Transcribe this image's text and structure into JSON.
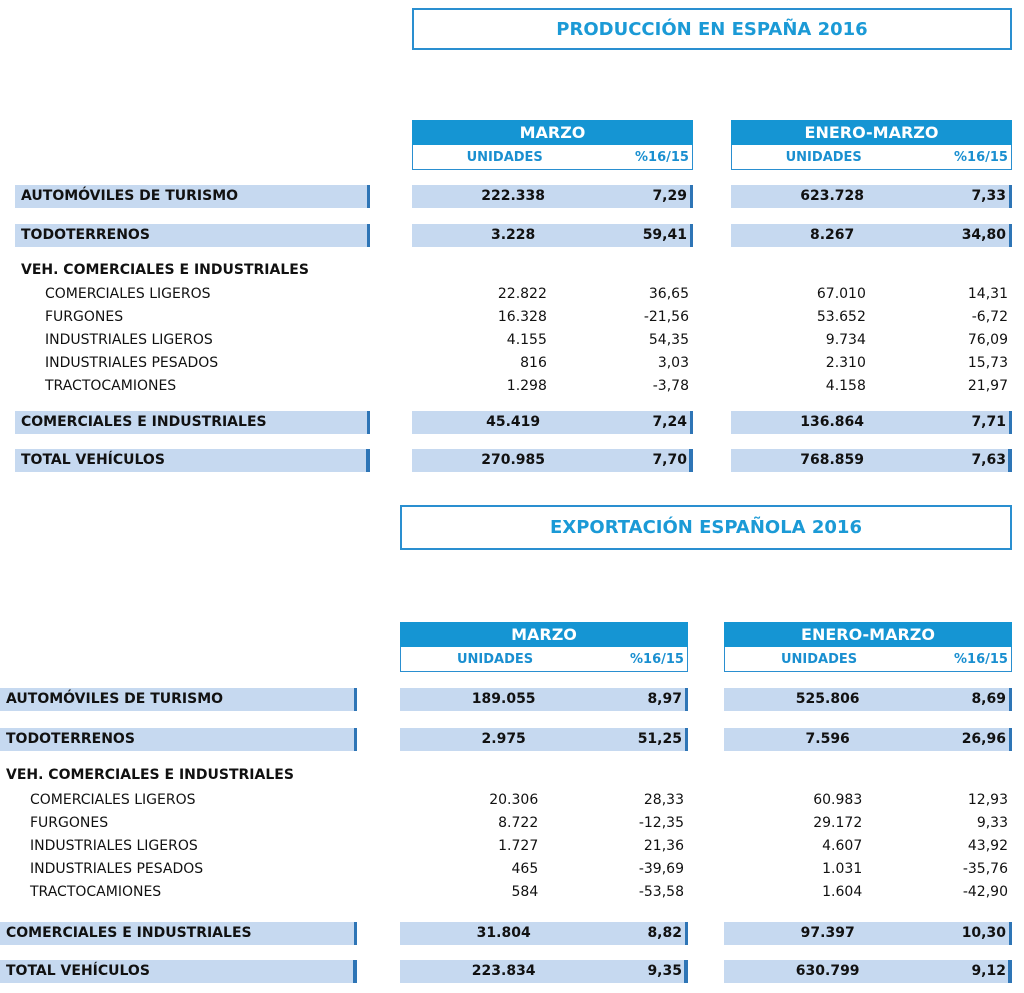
{
  "sections": [
    {
      "title": "PRODUCCIÓN  EN ESPAÑA 2016",
      "groups": [
        {
          "name": "MARZO",
          "columns": [
            "UNIDADES",
            "%16/15"
          ]
        },
        {
          "name": "ENERO-MARZO",
          "columns": [
            "UNIDADES",
            "%16/15"
          ]
        }
      ],
      "top_rows": [
        {
          "label": "AUTOMÓVILES DE TURISMO",
          "values": [
            "222.338",
            "7,29",
            "623.728",
            "7,33"
          ]
        },
        {
          "label": "TODOTERRENOS",
          "values": [
            "3.228",
            "59,41",
            "8.267",
            "34,80"
          ]
        }
      ],
      "breakdown": {
        "heading": "VEH. COMERCIALES E INDUSTRIALES",
        "rows": [
          {
            "label": "COMERCIALES LIGEROS",
            "values": [
              "22.822",
              "36,65",
              "67.010",
              "14,31"
            ]
          },
          {
            "label": "FURGONES",
            "values": [
              "16.328",
              "-21,56",
              "53.652",
              "-6,72"
            ]
          },
          {
            "label": "INDUSTRIALES LIGEROS",
            "values": [
              "4.155",
              "54,35",
              "9.734",
              "76,09"
            ]
          },
          {
            "label": "INDUSTRIALES PESADOS",
            "values": [
              "816",
              "3,03",
              "2.310",
              "15,73"
            ]
          },
          {
            "label": "TRACTOCAMIONES",
            "values": [
              "1.298",
              "-3,78",
              "4.158",
              "21,97"
            ]
          }
        ]
      },
      "bottom_rows": [
        {
          "label": "COMERCIALES E INDUSTRIALES",
          "values": [
            "45.419",
            "7,24",
            "136.864",
            "7,71"
          ]
        },
        {
          "label": "TOTAL VEHÍCULOS",
          "values": [
            "270.985",
            "7,70",
            "768.859",
            "7,63"
          ]
        }
      ]
    },
    {
      "title": "EXPORTACIÓN ESPAÑOLA 2016",
      "groups": [
        {
          "name": "MARZO",
          "columns": [
            "UNIDADES",
            "%16/15"
          ]
        },
        {
          "name": "ENERO-MARZO",
          "columns": [
            "UNIDADES",
            "%16/15"
          ]
        }
      ],
      "top_rows": [
        {
          "label": "AUTOMÓVILES DE TURISMO",
          "values": [
            "189.055",
            "8,97",
            "525.806",
            "8,69"
          ]
        },
        {
          "label": "TODOTERRENOS",
          "values": [
            "2.975",
            "51,25",
            "7.596",
            "26,96"
          ]
        }
      ],
      "breakdown": {
        "heading": "VEH. COMERCIALES E INDUSTRIALES",
        "rows": [
          {
            "label": "COMERCIALES LIGEROS",
            "values": [
              "20.306",
              "28,33",
              "60.983",
              "12,93"
            ]
          },
          {
            "label": "FURGONES",
            "values": [
              "8.722",
              "-12,35",
              "29.172",
              "9,33"
            ]
          },
          {
            "label": "INDUSTRIALES LIGEROS",
            "values": [
              "1.727",
              "21,36",
              "4.607",
              "43,92"
            ]
          },
          {
            "label": "INDUSTRIALES PESADOS",
            "values": [
              "465",
              "-39,69",
              "1.031",
              "-35,76"
            ]
          },
          {
            "label": "TRACTOCAMIONES",
            "values": [
              "584",
              "-53,58",
              "1.604",
              "-42,90"
            ]
          }
        ]
      },
      "bottom_rows": [
        {
          "label": "COMERCIALES E INDUSTRIALES",
          "values": [
            "31.804",
            "8,82",
            "97.397",
            "10,30"
          ]
        },
        {
          "label": "TOTAL VEHÍCULOS",
          "values": [
            "223.834",
            "9,35",
            "630.799",
            "9,12"
          ]
        }
      ]
    }
  ]
}
